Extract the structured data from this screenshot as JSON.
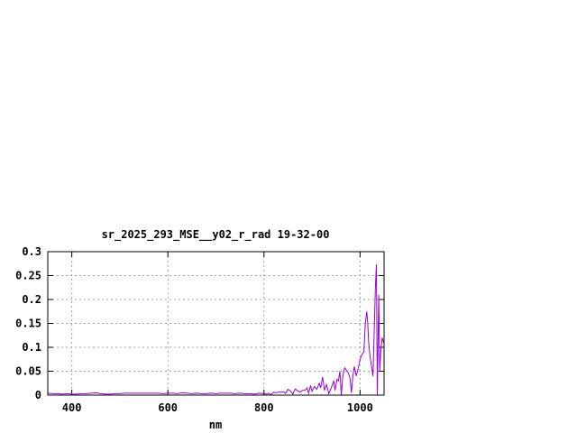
{
  "chart_data": {
    "type": "line",
    "title": "sr_2025_293_MSE__y02_r_rad 19-32-00",
    "xlabel": "nm",
    "ylabel": "",
    "xlim": [
      350,
      1050
    ],
    "ylim": [
      0,
      0.3
    ],
    "xticks": [
      400,
      600,
      800,
      1000
    ],
    "xtick_labels": [
      "400",
      "600",
      "800",
      "1000"
    ],
    "yticks": [
      0,
      0.05,
      0.1,
      0.15,
      0.2,
      0.25,
      0.3
    ],
    "ytick_labels": [
      "0",
      "0.05",
      "0.1",
      "0.15",
      "0.2",
      "0.25",
      "0.3"
    ],
    "grid": true,
    "line_color": "#9400d3",
    "series": [
      {
        "x": [
          350,
          360,
          370,
          380,
          390,
          400,
          410,
          420,
          430,
          440,
          450,
          460,
          470,
          480,
          490,
          500,
          510,
          520,
          530,
          540,
          550,
          560,
          570,
          580,
          590,
          600,
          610,
          620,
          630,
          640,
          650,
          660,
          670,
          680,
          690,
          700,
          710,
          720,
          730,
          740,
          750,
          760,
          770,
          780,
          790,
          800,
          805,
          810,
          815,
          820,
          825,
          830,
          835,
          840,
          845,
          850,
          855,
          860,
          865,
          870,
          875,
          880,
          885,
          890,
          893,
          897,
          900,
          905,
          910,
          915,
          918,
          922,
          926,
          930,
          935,
          940,
          945,
          948,
          952,
          955,
          958,
          961,
          964,
          968,
          972,
          976,
          979,
          982,
          985,
          988,
          992,
          996,
          1000,
          1004,
          1008,
          1011,
          1014,
          1016,
          1018,
          1021,
          1024,
          1027,
          1030,
          1032,
          1034,
          1036,
          1039,
          1041,
          1043,
          1046,
          1049
        ],
        "y": [
          0.004,
          0.003,
          0.003,
          0.002,
          0.003,
          0.002,
          0.002,
          0.003,
          0.003,
          0.004,
          0.005,
          0.003,
          0.002,
          0.002,
          0.003,
          0.003,
          0.004,
          0.004,
          0.004,
          0.004,
          0.004,
          0.004,
          0.004,
          0.004,
          0.003,
          0.004,
          0.004,
          0.003,
          0.005,
          0.004,
          0.003,
          0.004,
          0.003,
          0.003,
          0.004,
          0.003,
          0.004,
          0.004,
          0.004,
          0.003,
          0.004,
          0.003,
          0.003,
          0.002,
          0.004,
          0.003,
          0.002,
          0.004,
          0.001,
          0.006,
          0.005,
          0.006,
          0.006,
          0.007,
          0.004,
          0.012,
          0.009,
          0.002,
          0.013,
          0.009,
          0.006,
          0.01,
          0.01,
          0.015,
          0.004,
          0.02,
          0.008,
          0.018,
          0.012,
          0.025,
          0.015,
          0.038,
          0.01,
          0.022,
          0.003,
          0.015,
          0.03,
          0.01,
          0.033,
          0.03,
          0.05,
          0.0,
          0.04,
          0.057,
          0.052,
          0.045,
          0.035,
          0.005,
          0.04,
          0.06,
          0.04,
          0.055,
          0.075,
          0.085,
          0.09,
          0.15,
          0.175,
          0.15,
          0.11,
          0.08,
          0.06,
          0.04,
          0.15,
          0.226,
          0.273,
          0.0,
          0.21,
          0.05,
          0.09,
          0.12,
          0.11
        ]
      }
    ]
  }
}
